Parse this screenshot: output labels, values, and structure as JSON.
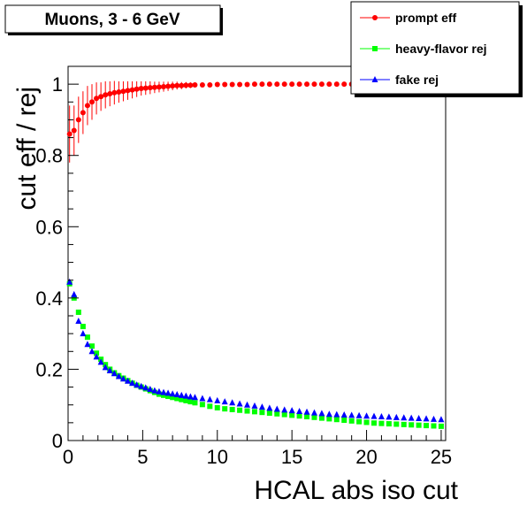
{
  "chart_data": {
    "type": "scatter",
    "title": "Muons, 3 - 6 GeV",
    "xlabel": "HCAL abs iso cut",
    "ylabel": "cut eff / rej",
    "xlim": [
      0,
      25.3
    ],
    "ylim": [
      0,
      1.05
    ],
    "xticks": [
      "0",
      "5",
      "10",
      "15",
      "20",
      "25"
    ],
    "yticks": [
      "0",
      "0.2",
      "0.4",
      "0.6",
      "0.8",
      "1"
    ],
    "legend_position": "top-right",
    "grid": false,
    "series": [
      {
        "name": "prompt eff",
        "color": "#ff0000",
        "marker": "circle",
        "error_bars": true,
        "x": [
          0.1,
          0.4,
          0.7,
          1.0,
          1.3,
          1.6,
          1.9,
          2.2,
          2.5,
          2.8,
          3.1,
          3.4,
          3.7,
          4.0,
          4.3,
          4.6,
          4.9,
          5.2,
          5.5,
          5.8,
          6.1,
          6.4,
          6.7,
          7.0,
          7.3,
          7.6,
          7.9,
          8.2,
          8.5,
          9.0,
          9.5,
          10.0,
          10.5,
          11.0,
          11.5,
          12.0,
          12.5,
          13.0,
          13.5,
          14.0,
          14.5,
          15.0,
          15.5,
          16.0,
          16.5,
          17.0,
          17.5,
          18.0,
          18.5,
          19.0,
          19.5,
          20.0,
          20.5,
          21.0,
          21.5,
          22.0,
          22.5,
          23.0,
          23.5,
          24.0,
          24.5,
          25.0
        ],
        "y": [
          0.86,
          0.87,
          0.9,
          0.92,
          0.94,
          0.95,
          0.96,
          0.965,
          0.97,
          0.973,
          0.976,
          0.978,
          0.98,
          0.982,
          0.984,
          0.986,
          0.988,
          0.989,
          0.99,
          0.991,
          0.992,
          0.993,
          0.994,
          0.995,
          0.996,
          0.996,
          0.997,
          0.997,
          0.998,
          0.998,
          0.998,
          0.999,
          0.999,
          0.999,
          0.999,
          0.999,
          1.0,
          1.0,
          1.0,
          1.0,
          1.0,
          1.0,
          1.0,
          1.0,
          1.0,
          1.0,
          1.0,
          1.0,
          1.0,
          1.0,
          1.0,
          1.0,
          1.0,
          1.0,
          1.0,
          1.0,
          1.0,
          1.0,
          1.0,
          1.0,
          1.0,
          1.0
        ],
        "yerr": [
          0.08,
          0.07,
          0.065,
          0.06,
          0.055,
          0.05,
          0.045,
          0.04,
          0.038,
          0.035,
          0.033,
          0.03,
          0.028,
          0.026,
          0.024,
          0.022,
          0.02,
          0.019,
          0.018,
          0.016,
          0.015,
          0.014,
          0.013,
          0.012,
          0.011,
          0.01,
          0.009,
          0.008,
          0.007,
          0.006,
          0.005,
          0.004,
          0.003,
          0.003,
          0.002,
          0.002,
          0.002,
          0.001,
          0.001,
          0.001,
          0.001,
          0.001,
          0.001,
          0.001,
          0.001,
          0.001,
          0.001,
          0.001,
          0.001,
          0.001,
          0.001,
          0.001,
          0.001,
          0.001,
          0.001,
          0.001,
          0.001,
          0.001,
          0.001,
          0.001,
          0.001,
          0.001
        ]
      },
      {
        "name": "heavy-flavor rej",
        "color": "#00ff00",
        "marker": "square",
        "error_bars": false,
        "x": [
          0.1,
          0.4,
          0.7,
          1.0,
          1.3,
          1.6,
          1.9,
          2.2,
          2.5,
          2.8,
          3.1,
          3.4,
          3.7,
          4.0,
          4.3,
          4.6,
          4.9,
          5.2,
          5.5,
          5.8,
          6.1,
          6.4,
          6.7,
          7.0,
          7.3,
          7.6,
          7.9,
          8.2,
          8.5,
          9.0,
          9.5,
          10.0,
          10.5,
          11.0,
          11.5,
          12.0,
          12.5,
          13.0,
          13.5,
          14.0,
          14.5,
          15.0,
          15.5,
          16.0,
          16.5,
          17.0,
          17.5,
          18.0,
          18.5,
          19.0,
          19.5,
          20.0,
          20.5,
          21.0,
          21.5,
          22.0,
          22.5,
          23.0,
          23.5,
          24.0,
          24.5,
          25.0
        ],
        "y": [
          0.44,
          0.4,
          0.36,
          0.32,
          0.29,
          0.265,
          0.245,
          0.228,
          0.213,
          0.2,
          0.19,
          0.182,
          0.175,
          0.168,
          0.161,
          0.155,
          0.15,
          0.145,
          0.14,
          0.135,
          0.13,
          0.127,
          0.124,
          0.121,
          0.118,
          0.115,
          0.112,
          0.109,
          0.106,
          0.101,
          0.096,
          0.092,
          0.089,
          0.087,
          0.085,
          0.083,
          0.081,
          0.079,
          0.077,
          0.075,
          0.073,
          0.071,
          0.069,
          0.067,
          0.065,
          0.063,
          0.061,
          0.059,
          0.057,
          0.055,
          0.053,
          0.051,
          0.049,
          0.048,
          0.047,
          0.046,
          0.045,
          0.044,
          0.043,
          0.042,
          0.041,
          0.04
        ]
      },
      {
        "name": "fake rej",
        "color": "#0000ff",
        "marker": "triangle",
        "error_bars": false,
        "x": [
          0.1,
          0.4,
          0.7,
          1.0,
          1.3,
          1.6,
          1.9,
          2.2,
          2.5,
          2.8,
          3.1,
          3.4,
          3.7,
          4.0,
          4.3,
          4.6,
          4.9,
          5.2,
          5.5,
          5.8,
          6.1,
          6.4,
          6.7,
          7.0,
          7.3,
          7.6,
          7.9,
          8.2,
          8.5,
          9.0,
          9.5,
          10.0,
          10.5,
          11.0,
          11.5,
          12.0,
          12.5,
          13.0,
          13.5,
          14.0,
          14.5,
          15.0,
          15.5,
          16.0,
          16.5,
          17.0,
          17.5,
          18.0,
          18.5,
          19.0,
          19.5,
          20.0,
          20.5,
          21.0,
          21.5,
          22.0,
          22.5,
          23.0,
          23.5,
          24.0,
          24.5,
          25.0
        ],
        "y": [
          0.445,
          0.41,
          0.335,
          0.3,
          0.27,
          0.25,
          0.235,
          0.22,
          0.205,
          0.196,
          0.188,
          0.18,
          0.173,
          0.167,
          0.161,
          0.156,
          0.152,
          0.148,
          0.144,
          0.14,
          0.137,
          0.135,
          0.133,
          0.131,
          0.129,
          0.127,
          0.125,
          0.123,
          0.121,
          0.118,
          0.115,
          0.112,
          0.109,
          0.106,
          0.103,
          0.1,
          0.097,
          0.094,
          0.091,
          0.088,
          0.086,
          0.084,
          0.082,
          0.08,
          0.078,
          0.076,
          0.074,
          0.073,
          0.072,
          0.071,
          0.07,
          0.069,
          0.068,
          0.067,
          0.066,
          0.065,
          0.064,
          0.063,
          0.062,
          0.061,
          0.06,
          0.059
        ]
      }
    ]
  }
}
